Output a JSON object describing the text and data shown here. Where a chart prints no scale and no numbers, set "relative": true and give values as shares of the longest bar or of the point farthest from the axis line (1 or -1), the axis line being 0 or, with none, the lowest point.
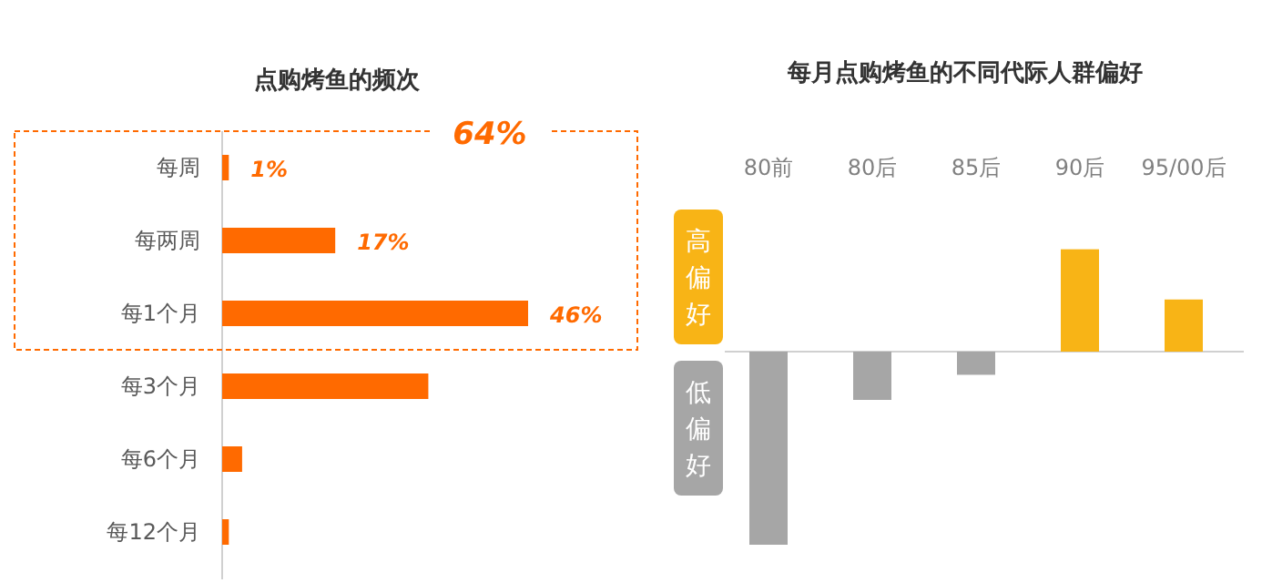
{
  "chart_data": [
    {
      "type": "bar",
      "orientation": "horizontal",
      "title": "点购烤鱼的频次",
      "categories": [
        "每周",
        "每两周",
        "每1个月",
        "每3个月",
        "每6个月",
        "每12个月"
      ],
      "values": [
        1,
        17,
        46,
        31,
        3,
        1
      ],
      "value_labels": [
        "1%",
        "17%",
        "46%",
        null,
        null,
        null
      ],
      "color": "#ff6a00",
      "annotations": [
        "64%"
      ]
    },
    {
      "type": "bar",
      "relative": true,
      "title": "每月点购烤鱼的不同代际人群偏好",
      "categories": [
        "80前",
        "80后",
        "85后",
        "90后",
        "95/00后"
      ],
      "values": [
        -1,
        -0.25,
        -0.12,
        0.53,
        0.27
      ],
      "colors": [
        "#a6a6a6",
        "#a6a6a6",
        "#a6a6a6",
        "#f8b416",
        "#f8b416"
      ],
      "annotations": [
        "高偏好",
        "低偏好"
      ]
    }
  ]
}
